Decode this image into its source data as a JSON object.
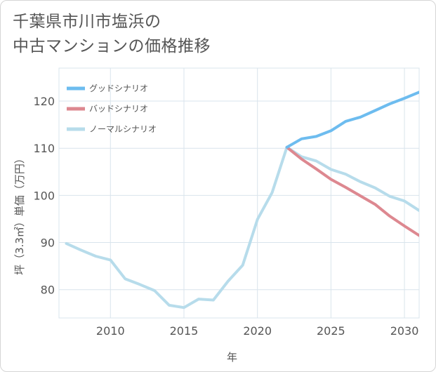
{
  "title_line1": "千葉県市川市塩浜の",
  "title_line2": "中古マンションの価格推移",
  "chart_data": {
    "type": "line",
    "xlabel": "年",
    "ylabel": "坪（3.3㎡）単価（万円）",
    "xlim": [
      2006.5,
      2031
    ],
    "ylim": [
      74,
      127
    ],
    "x_ticks": [
      2010,
      2015,
      2020,
      2025,
      2030
    ],
    "y_ticks": [
      80,
      90,
      100,
      110,
      120
    ],
    "grid": true,
    "legend_position": "top-left",
    "series": [
      {
        "name": "グッドシナリオ",
        "color": "#6dbcef",
        "x": [
          2022,
          2023,
          2024,
          2025,
          2026,
          2027,
          2028,
          2029,
          2030,
          2031
        ],
        "values": [
          110.2,
          112.0,
          112.5,
          113.7,
          115.7,
          116.6,
          118.0,
          119.4,
          120.6,
          121.9
        ]
      },
      {
        "name": "バッドシナリオ",
        "color": "#dd8890",
        "x": [
          2022,
          2023,
          2024,
          2025,
          2026,
          2027,
          2028,
          2029,
          2030,
          2031
        ],
        "values": [
          110.2,
          107.7,
          105.6,
          103.4,
          101.7,
          99.9,
          98.1,
          95.6,
          93.5,
          91.5
        ]
      },
      {
        "name": "ノーマルシナリオ",
        "color": "#b7dceb",
        "x": [
          2007,
          2008,
          2009,
          2010,
          2011,
          2012,
          2013,
          2014,
          2015,
          2016,
          2017,
          2018,
          2019,
          2020,
          2021,
          2022,
          2023,
          2024,
          2025,
          2026,
          2027,
          2028,
          2029,
          2030,
          2031
        ],
        "values": [
          89.8,
          88.4,
          87.1,
          86.3,
          82.3,
          81.1,
          79.8,
          76.7,
          76.2,
          78.0,
          77.8,
          81.8,
          85.2,
          94.9,
          100.6,
          110.2,
          108.2,
          107.3,
          105.5,
          104.5,
          102.9,
          101.6,
          99.8,
          98.8,
          96.8
        ]
      }
    ]
  }
}
